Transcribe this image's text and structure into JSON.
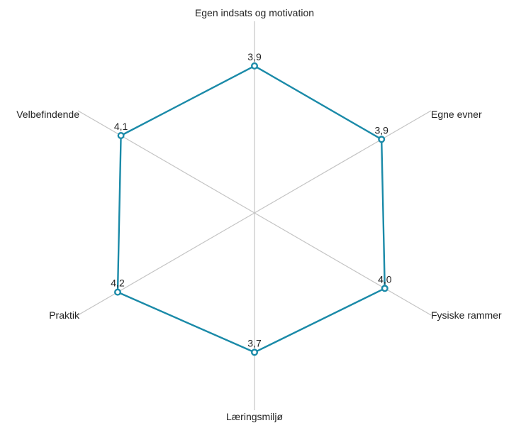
{
  "chart_data": {
    "type": "radar",
    "axes": [
      "Egen indsats og motivation",
      "Egne evner",
      "Fysiske rammer",
      "Læringsmiljø",
      "Praktik",
      "Velbefindende"
    ],
    "series": [
      {
        "values": [
          3.9,
          3.9,
          4.0,
          3.7,
          4.2,
          4.1
        ],
        "value_labels": [
          "3,9",
          "3,9",
          "4,0",
          "3,7",
          "4,2",
          "4,1"
        ],
        "color": "#1a8aa8"
      }
    ],
    "value_range": [
      0,
      5.5
    ],
    "grid": false
  }
}
